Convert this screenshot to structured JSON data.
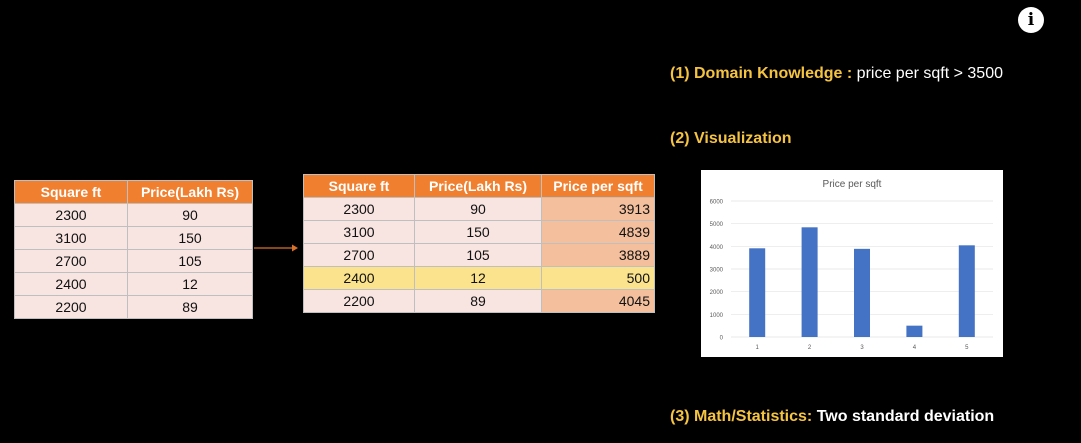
{
  "info_icon": "i",
  "table1": {
    "headers": [
      "Square ft",
      "Price(Lakh Rs)"
    ],
    "rows": [
      [
        "2300",
        "90"
      ],
      [
        "3100",
        "150"
      ],
      [
        "2700",
        "105"
      ],
      [
        "2400",
        "12"
      ],
      [
        "2200",
        "89"
      ]
    ]
  },
  "table2": {
    "headers": [
      "Square ft",
      "Price(Lakh Rs)",
      "Price per sqft"
    ],
    "rows": [
      [
        "2300",
        "90",
        "3913"
      ],
      [
        "3100",
        "150",
        "4839"
      ],
      [
        "2700",
        "105",
        "3889"
      ],
      [
        "2400",
        "12",
        "500"
      ],
      [
        "2200",
        "89",
        "4045"
      ]
    ]
  },
  "points": {
    "p1": {
      "heading": "(1) Domain Knowledge :",
      "text": " price per sqft > 3500"
    },
    "p2": {
      "heading": "(2) Visualization",
      "text": ""
    },
    "p3": {
      "heading": "(3) Math/Statistics:",
      "text": " Two standard deviation"
    }
  },
  "colors": {
    "header": "#f07f2f",
    "highlight": "#fbe28c",
    "heading": "#f5c342",
    "bar": "#4472c4"
  },
  "chart_data": {
    "type": "bar",
    "title": "Price per sqft",
    "categories": [
      "1",
      "2",
      "3",
      "4",
      "5"
    ],
    "values": [
      3913,
      4839,
      3889,
      500,
      4045
    ],
    "yticks": [
      "0",
      "1000",
      "2000",
      "3000",
      "4000",
      "5000",
      "6000"
    ],
    "ylim": [
      0,
      6000
    ],
    "grid": true,
    "legend": "none"
  }
}
